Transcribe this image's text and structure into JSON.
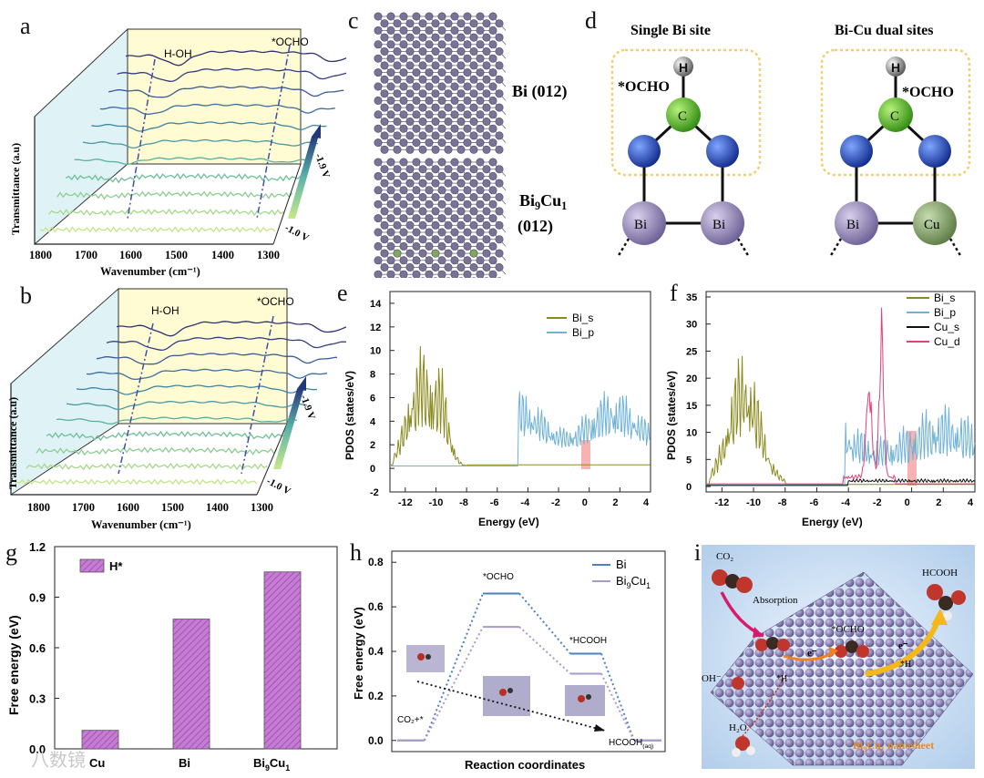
{
  "panels": {
    "a": {
      "label": "a",
      "xlabel": "Wavenumber (cm⁻¹)",
      "ylabel": "Transmittance (a.u)",
      "ticks": [
        "1800",
        "1700",
        "1600",
        "1500",
        "1400",
        "1300"
      ],
      "peak1": "H-OH",
      "peak2": "*OCHO",
      "v_high": "-1.9 V",
      "v_low": "-1.0 V"
    },
    "b": {
      "label": "b",
      "xlabel": "Wavenumber (cm⁻¹)",
      "ylabel": "Transmittance (a.u)",
      "ticks": [
        "1800",
        "1700",
        "1600",
        "1500",
        "1400",
        "1300"
      ],
      "peak1": "H-OH",
      "peak2": "*OCHO",
      "v_high": "-1.9 V",
      "v_low": "-1.0 V"
    },
    "c": {
      "label": "c",
      "struct1": "Bi (012)",
      "struct2_a": "Bi",
      "struct2_sub1": "9",
      "struct2_b": "Cu",
      "struct2_sub2": "1",
      "struct2_c": "(012)"
    },
    "d": {
      "label": "d",
      "title_left": "Single Bi site",
      "title_right": "Bi-Cu dual sites",
      "adsorbate": "*OCHO",
      "atom_h": "H",
      "atom_c": "C",
      "atom_bi": "Bi",
      "atom_cu": "Cu"
    },
    "e": {
      "label": "e",
      "xlabel": "Energy (eV)",
      "ylabel": "PDOS (states/eV)",
      "xticks": [
        "-12",
        "-10",
        "-8",
        "-6",
        "-4",
        "-2",
        "0",
        "2",
        "4"
      ],
      "yticks": [
        "-2",
        "0",
        "2",
        "4",
        "6",
        "8",
        "10",
        "12",
        "14"
      ],
      "legend": [
        "Bi_s",
        "Bi_p"
      ]
    },
    "f": {
      "label": "f",
      "xlabel": "Energy (eV)",
      "ylabel": "PDOS (states/eV)",
      "xticks": [
        "-12",
        "-10",
        "-8",
        "-6",
        "-4",
        "-2",
        "0",
        "2",
        "4"
      ],
      "yticks": [
        "0",
        "5",
        "10",
        "15",
        "20",
        "25",
        "30",
        "35"
      ],
      "legend": [
        "Bi_s",
        "Bi_p",
        "Cu_s",
        "Cu_d"
      ]
    },
    "h": {
      "label": "h",
      "ylabel": "Free energy (eV)",
      "xlabel": "Reaction coordinates",
      "yticks": [
        "0.0",
        "0.2",
        "0.4",
        "0.6",
        "0.8"
      ],
      "states": [
        "CO₂+*",
        "*OCHO",
        "*HCOOH",
        "HCOOH"
      ],
      "state4_sub": "(aq)",
      "legend1": "Bi",
      "legend2_a": "Bi",
      "legend2_sub1": "9",
      "legend2_b": "Cu",
      "legend2_sub2": "1"
    },
    "i": {
      "label": "i",
      "co2": "CO₂",
      "hcooh": "HCOOH",
      "absorption": "Absorption",
      "ocho": "*OCHO",
      "oh": "OH⁻",
      "h_star1": "*H",
      "h_star2": "*H",
      "e1": "e⁻",
      "e2": "e⁻",
      "h2o": "H₂O",
      "sheet_a": "Bi",
      "sheet_sub1": "9",
      "sheet_b": "Cu",
      "sheet_sub2": "1",
      "sheet_c": " nanosheet"
    },
    "watermark": "八数镜"
  },
  "chart_data": [
    {
      "type": "bar",
      "panel": "g",
      "categories": [
        "Cu",
        "Bi",
        "Bi9Cu1"
      ],
      "category_labels": [
        "Cu",
        "Bi",
        "Bi",
        "9",
        "Cu",
        "1"
      ],
      "values": [
        0.11,
        0.77,
        1.05
      ],
      "ylabel": "Free energy (eV)",
      "yticks": [
        "0.0",
        "0.3",
        "0.6",
        "0.9",
        "1.2"
      ],
      "ylim": [
        0,
        1.2
      ],
      "legend": [
        "H*"
      ],
      "legend_position": "top-left",
      "bar_color": "#c77ad6"
    },
    {
      "type": "line",
      "panel": "h",
      "categories": [
        "CO2+*",
        "*OCHO",
        "*HCOOH",
        "HCOOH(aq)"
      ],
      "series": [
        {
          "name": "Bi",
          "values": [
            0.0,
            0.66,
            0.39,
            0.0
          ],
          "color": "#4a82c0"
        },
        {
          "name": "Bi9Cu1",
          "values": [
            0.0,
            0.51,
            0.3,
            0.0
          ],
          "color": "#a99ac8"
        }
      ],
      "ylim": [
        -0.05,
        0.85
      ]
    }
  ]
}
